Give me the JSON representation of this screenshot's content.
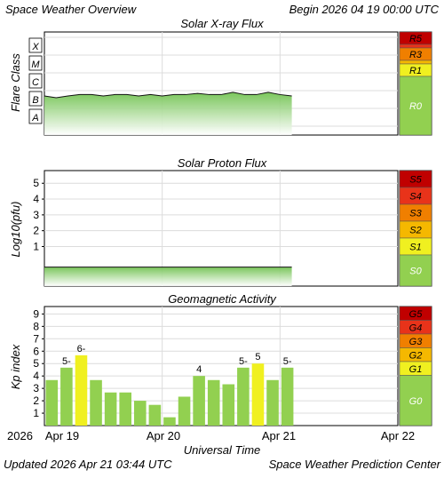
{
  "header": {
    "title": "Space Weather Overview",
    "begin": "Begin 2026 04 19 00:00 UTC"
  },
  "footer": {
    "updated": "Updated 2026 Apr 21 03:44 UTC",
    "center": "Space Weather Prediction Center"
  },
  "x_axis": {
    "label": "Universal Time",
    "year": "2026",
    "ticks": [
      "Apr 19",
      "Apr 20",
      "Apr 21",
      "Apr 22"
    ]
  },
  "colors": {
    "extreme": "#c00000",
    "severe": "#e8331a",
    "strong": "#f07f00",
    "moderate": "#f5b800",
    "minor": "#f0f020",
    "none": "#92d050",
    "bar_green": "#92d050",
    "bar_yellow": "#f0f020"
  },
  "chart_data": [
    {
      "type": "area",
      "title": "Solar X-ray Flux",
      "ylabel": "Flare Class",
      "y_classes": [
        "A",
        "B",
        "C",
        "M",
        "X"
      ],
      "scale_labels": [
        "R5",
        "R3",
        "R1",
        "R0"
      ],
      "x_range_days": [
        0,
        3
      ],
      "series": [
        {
          "x": [
            0,
            0.1,
            0.2,
            0.3,
            0.4,
            0.5,
            0.6,
            0.7,
            0.8,
            0.9,
            1.0,
            1.1,
            1.2,
            1.3,
            1.4,
            1.5,
            1.6,
            1.7,
            1.8,
            1.9,
            2.0,
            2.1
          ],
          "values": [
            "B5",
            "B4",
            "B5",
            "B6",
            "B6",
            "B5",
            "B6",
            "B6",
            "B5",
            "B6",
            "B5",
            "B6",
            "B6",
            "B7",
            "B6",
            "B6",
            "B8",
            "B6",
            "B6",
            "B8",
            "B6",
            "B5"
          ]
        }
      ]
    },
    {
      "type": "area",
      "title": "Solar Proton Flux",
      "ylabel": "Log10(pfu)",
      "yticks": [
        1,
        2,
        3,
        4,
        5
      ],
      "ylim": [
        -1.5,
        5.8
      ],
      "scale_labels": [
        "S5",
        "S4",
        "S3",
        "S2",
        "S1",
        "S0"
      ],
      "x_range_days": [
        0,
        3
      ],
      "series": [
        {
          "x": [
            0,
            0.25,
            0.5,
            0.75,
            1.0,
            1.25,
            1.5,
            1.75,
            2.0,
            2.1
          ],
          "values": [
            -0.3,
            -0.3,
            -0.3,
            -0.3,
            -0.3,
            -0.3,
            -0.3,
            -0.3,
            -0.3,
            -0.3
          ]
        }
      ]
    },
    {
      "type": "bar",
      "title": "Geomagnetic Activity",
      "ylabel": "Kp index",
      "yticks": [
        1,
        2,
        3,
        4,
        5,
        6,
        7,
        8,
        9
      ],
      "ylim": [
        0,
        9.6
      ],
      "scale_labels": [
        "G5",
        "G4",
        "G3",
        "G2",
        "G1",
        "G0"
      ],
      "x_range_days": [
        0,
        3
      ],
      "values": [
        3.67,
        4.67,
        5.67,
        3.67,
        2.67,
        2.67,
        2.0,
        1.67,
        0.67,
        2.33,
        4.0,
        3.67,
        3.33,
        4.67,
        5.0,
        3.67,
        4.67
      ],
      "highlight": [
        false,
        false,
        true,
        false,
        false,
        false,
        false,
        false,
        false,
        false,
        false,
        false,
        false,
        false,
        true,
        false,
        false
      ],
      "bar_labels": [
        "",
        "5-",
        "6-",
        "",
        "",
        "",
        "",
        "",
        "",
        "",
        "4",
        "",
        "",
        "5-",
        "5",
        "",
        "5-"
      ]
    }
  ]
}
